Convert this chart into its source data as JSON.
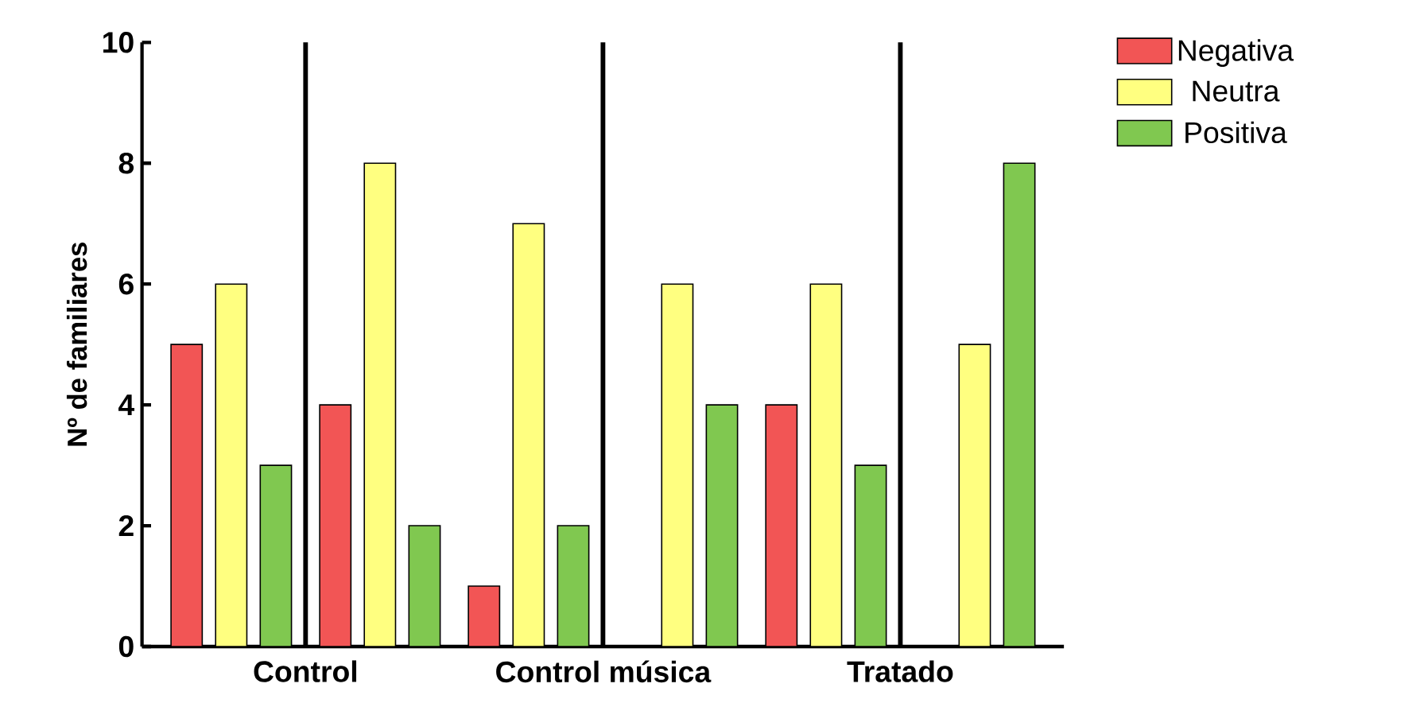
{
  "chart_data": {
    "type": "bar",
    "ylabel": "Nº de familiares",
    "categories": [
      null,
      null,
      null,
      null,
      null,
      null
    ],
    "series": [
      {
        "name": "Negativa",
        "color": "#f25555",
        "values": [
          5,
          4,
          1,
          0,
          4,
          0
        ]
      },
      {
        "name": "Neutra",
        "color": "#ffff80",
        "values": [
          6,
          8,
          7,
          6,
          6,
          5
        ]
      },
      {
        "name": "Positiva",
        "color": "#80c850",
        "values": [
          3,
          2,
          2,
          4,
          3,
          8
        ]
      }
    ],
    "ylim": [
      0,
      10
    ],
    "yticks": [
      0,
      2,
      4,
      6,
      8,
      10
    ],
    "legend": "top right",
    "annotations": [
      "Control",
      "Control música",
      "Tratado"
    ]
  }
}
